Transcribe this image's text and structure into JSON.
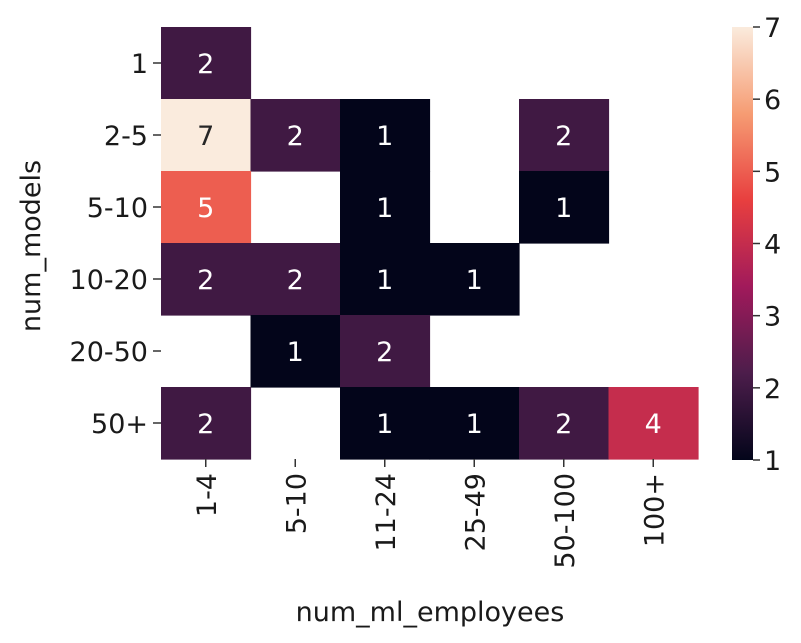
{
  "chart_data": {
    "type": "heatmap",
    "title": "",
    "xlabel": "num_ml_employees",
    "ylabel": "num_models",
    "x_categories": [
      "1-4",
      "5-10",
      "11-24",
      "25-49",
      "50-100",
      "100+"
    ],
    "y_categories": [
      "1",
      "2-5",
      "5-10",
      "10-20",
      "20-50",
      "50+"
    ],
    "values": [
      [
        2,
        null,
        null,
        null,
        null,
        null
      ],
      [
        7,
        2,
        1,
        null,
        2,
        null
      ],
      [
        5,
        null,
        1,
        null,
        1,
        null
      ],
      [
        2,
        2,
        1,
        1,
        null,
        null
      ],
      [
        null,
        1,
        2,
        null,
        null,
        null
      ],
      [
        2,
        null,
        1,
        1,
        2,
        4
      ]
    ],
    "colorbar": {
      "min": 1,
      "max": 7,
      "ticks": [
        1,
        2,
        3,
        4,
        5,
        6,
        7
      ],
      "colormap": "rocket",
      "stops": [
        "#03051a",
        "#4c1d4b",
        "#a11a5b",
        "#e83f3f",
        "#f69c73",
        "#faebdd"
      ]
    },
    "annotations": true,
    "grid": false
  }
}
